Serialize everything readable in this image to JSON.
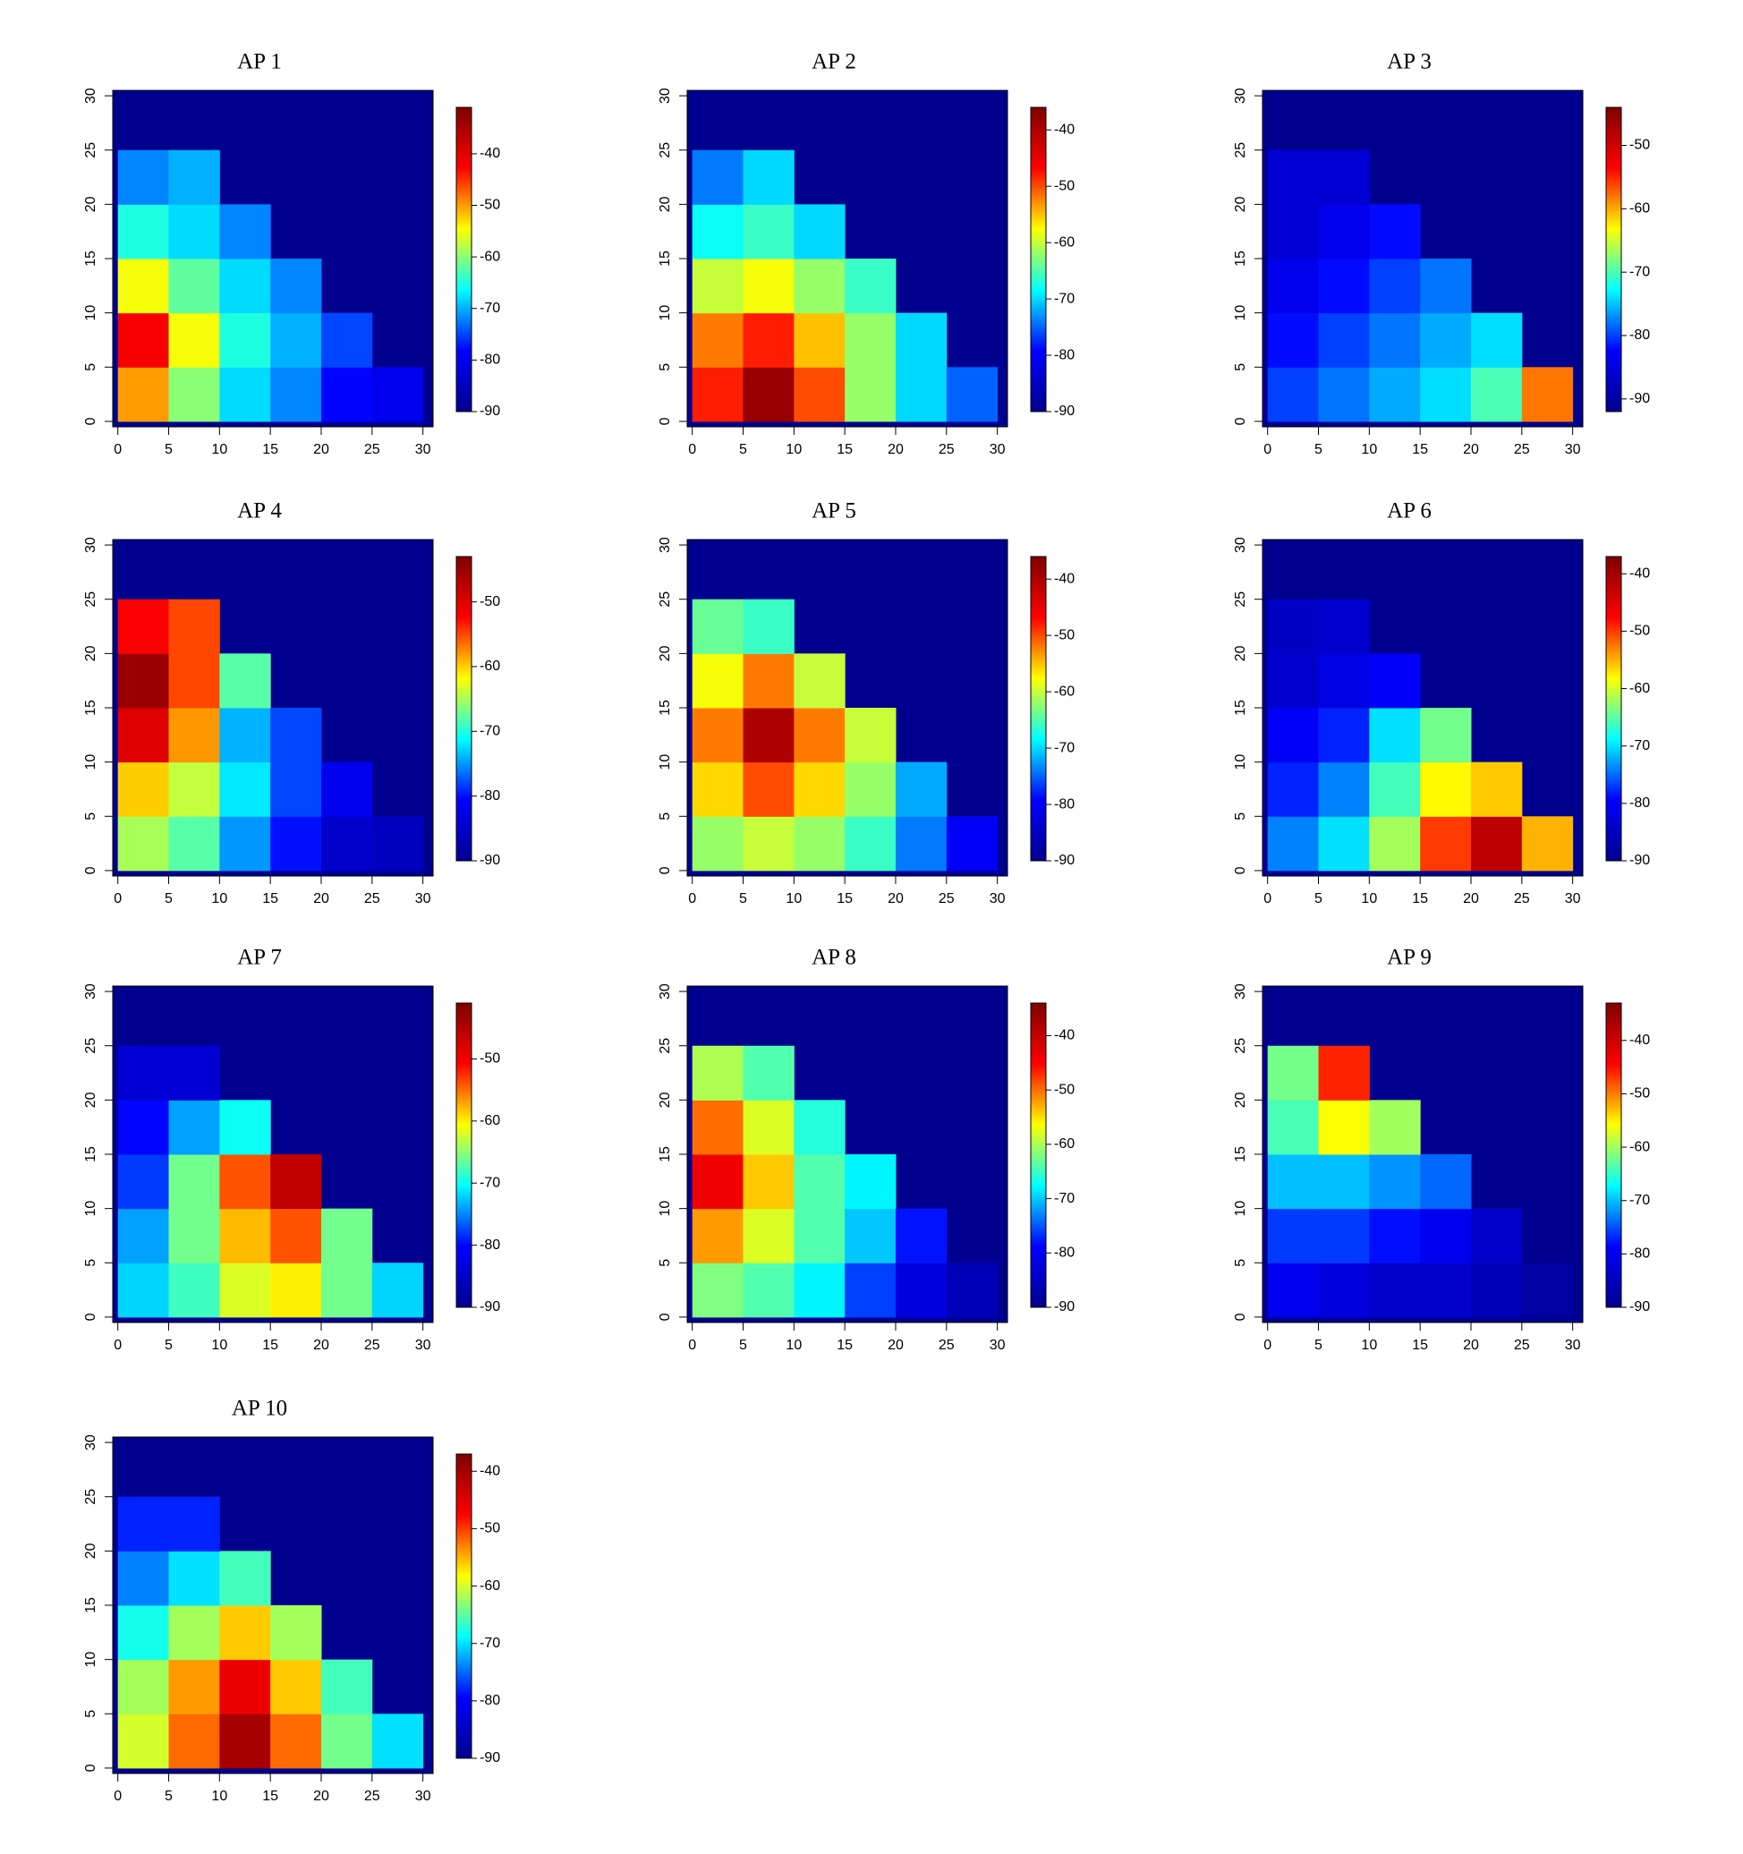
{
  "chart_data": [
    {
      "type": "heatmap",
      "title": "AP 1",
      "x_edges": [
        0,
        5,
        10,
        15,
        20,
        25,
        30
      ],
      "y_edges": [
        0,
        5,
        10,
        15,
        20,
        25,
        30
      ],
      "values": [
        [
          -50,
          -60,
          -68,
          -72,
          -78,
          -80
        ],
        [
          -42,
          -55,
          -65,
          -70,
          -75,
          null
        ],
        [
          -55,
          -62,
          -68,
          -72,
          null,
          null
        ],
        [
          -65,
          -68,
          -72,
          null,
          null,
          null
        ],
        [
          -72,
          -70,
          null,
          null,
          null,
          null
        ],
        [
          null,
          null,
          null,
          null,
          null,
          null
        ]
      ],
      "xlim": [
        -0.5,
        31
      ],
      "ylim": [
        -0.5,
        30.5
      ],
      "xticks": [
        0,
        5,
        10,
        15,
        20,
        25,
        30
      ],
      "yticks": [
        0,
        5,
        10,
        15,
        20,
        25,
        30
      ],
      "zlim": [
        -90,
        -31
      ],
      "zticks": [
        -40,
        -50,
        -60,
        -70,
        -80,
        -90
      ],
      "background_color": "#00008f",
      "colormap": [
        "#00008f",
        "#0000ff",
        "#00ffff",
        "#ffff00",
        "#ff0000",
        "#800000"
      ]
    },
    {
      "type": "heatmap",
      "title": "AP 2",
      "x_edges": [
        0,
        5,
        10,
        15,
        20,
        25,
        30
      ],
      "y_edges": [
        0,
        5,
        10,
        15,
        20,
        25,
        30
      ],
      "values": [
        [
          -48,
          -38,
          -50,
          -62,
          -70,
          -75
        ],
        [
          -52,
          -48,
          -55,
          -62,
          -70,
          null
        ],
        [
          -60,
          -58,
          -62,
          -66,
          null,
          null
        ],
        [
          -68,
          -66,
          -70,
          null,
          null,
          null
        ],
        [
          -74,
          -70,
          null,
          null,
          null,
          null
        ],
        [
          null,
          null,
          null,
          null,
          null,
          null
        ]
      ],
      "xlim": [
        -0.5,
        31
      ],
      "ylim": [
        -0.5,
        30.5
      ],
      "xticks": [
        0,
        5,
        10,
        15,
        20,
        25,
        30
      ],
      "yticks": [
        0,
        5,
        10,
        15,
        20,
        25,
        30
      ],
      "zlim": [
        -90,
        -36
      ],
      "zticks": [
        -40,
        -50,
        -60,
        -70,
        -80,
        -90
      ],
      "background_color": "#00008f",
      "colormap": [
        "#00008f",
        "#0000ff",
        "#00ffff",
        "#ffff00",
        "#ff0000",
        "#800000"
      ]
    },
    {
      "type": "heatmap",
      "title": "AP 3",
      "x_edges": [
        0,
        5,
        10,
        15,
        20,
        25,
        30
      ],
      "y_edges": [
        0,
        5,
        10,
        15,
        20,
        25,
        30
      ],
      "values": [
        [
          -80,
          -78,
          -76,
          -74,
          -70,
          -58
        ],
        [
          -82,
          -80,
          -78,
          -76,
          -74,
          null
        ],
        [
          -84,
          -82,
          -80,
          -78,
          null,
          null
        ],
        [
          -86,
          -84,
          -82,
          null,
          null,
          null
        ],
        [
          -86,
          -86,
          null,
          null,
          null,
          null
        ],
        [
          null,
          null,
          null,
          null,
          null,
          null
        ]
      ],
      "xlim": [
        -0.5,
        31
      ],
      "ylim": [
        -0.5,
        30.5
      ],
      "xticks": [
        0,
        5,
        10,
        15,
        20,
        25,
        30
      ],
      "yticks": [
        0,
        5,
        10,
        15,
        20,
        25,
        30
      ],
      "zlim": [
        -92,
        -44
      ],
      "zticks": [
        -50,
        -60,
        -70,
        -80,
        -90
      ],
      "background_color": "#00008f",
      "colormap": [
        "#00008f",
        "#0000ff",
        "#00ffff",
        "#ffff00",
        "#ff0000",
        "#800000"
      ]
    },
    {
      "type": "heatmap",
      "title": "AP 4",
      "x_edges": [
        0,
        5,
        10,
        15,
        20,
        25,
        30
      ],
      "y_edges": [
        0,
        5,
        10,
        15,
        20,
        25,
        30
      ],
      "values": [
        [
          -65,
          -68,
          -75,
          -80,
          -85,
          -86
        ],
        [
          -60,
          -64,
          -72,
          -78,
          -82,
          null
        ],
        [
          -50,
          -58,
          -74,
          -78,
          null,
          null
        ],
        [
          -45,
          -55,
          -68,
          null,
          null,
          null
        ],
        [
          -52,
          -55,
          null,
          null,
          null,
          null
        ],
        [
          null,
          null,
          null,
          null,
          null,
          null
        ]
      ],
      "xlim": [
        -0.5,
        31
      ],
      "ylim": [
        -0.5,
        30.5
      ],
      "xticks": [
        0,
        5,
        10,
        15,
        20,
        25,
        30
      ],
      "yticks": [
        0,
        5,
        10,
        15,
        20,
        25,
        30
      ],
      "zlim": [
        -90,
        -43
      ],
      "zticks": [
        -50,
        -60,
        -70,
        -80,
        -90
      ],
      "background_color": "#00008f",
      "colormap": [
        "#00008f",
        "#0000ff",
        "#00ffff",
        "#ffff00",
        "#ff0000",
        "#800000"
      ]
    },
    {
      "type": "heatmap",
      "title": "AP 5",
      "x_edges": [
        0,
        5,
        10,
        15,
        20,
        25,
        30
      ],
      "y_edges": [
        0,
        5,
        10,
        15,
        20,
        25,
        30
      ],
      "values": [
        [
          -62,
          -60,
          -62,
          -66,
          -74,
          -80
        ],
        [
          -56,
          -50,
          -56,
          -62,
          -72,
          null
        ],
        [
          -52,
          -40,
          -52,
          -60,
          null,
          null
        ],
        [
          -58,
          -52,
          -60,
          null,
          null,
          null
        ],
        [
          -64,
          -66,
          null,
          null,
          null,
          null
        ],
        [
          null,
          null,
          null,
          null,
          null,
          null
        ]
      ],
      "xlim": [
        -0.5,
        31
      ],
      "ylim": [
        -0.5,
        30.5
      ],
      "xticks": [
        0,
        5,
        10,
        15,
        20,
        25,
        30
      ],
      "yticks": [
        0,
        5,
        10,
        15,
        20,
        25,
        30
      ],
      "zlim": [
        -90,
        -36
      ],
      "zticks": [
        -40,
        -50,
        -60,
        -70,
        -80,
        -90
      ],
      "background_color": "#00008f",
      "colormap": [
        "#00008f",
        "#0000ff",
        "#00ffff",
        "#ffff00",
        "#ff0000",
        "#800000"
      ]
    },
    {
      "type": "heatmap",
      "title": "AP 6",
      "x_edges": [
        0,
        5,
        10,
        15,
        20,
        25,
        30
      ],
      "y_edges": [
        0,
        5,
        10,
        15,
        20,
        25,
        30
      ],
      "values": [
        [
          -74,
          -70,
          -62,
          -50,
          -42,
          -55
        ],
        [
          -78,
          -74,
          -66,
          -58,
          -56,
          null
        ],
        [
          -80,
          -78,
          -70,
          -64,
          null,
          null
        ],
        [
          -84,
          -82,
          -80,
          null,
          null,
          null
        ],
        [
          -85,
          -84,
          null,
          null,
          null,
          null
        ],
        [
          null,
          null,
          null,
          null,
          null,
          null
        ]
      ],
      "xlim": [
        -0.5,
        31
      ],
      "ylim": [
        -0.5,
        30.5
      ],
      "xticks": [
        0,
        5,
        10,
        15,
        20,
        25,
        30
      ],
      "yticks": [
        0,
        5,
        10,
        15,
        20,
        25,
        30
      ],
      "zlim": [
        -90,
        -37
      ],
      "zticks": [
        -40,
        -50,
        -60,
        -70,
        -80,
        -90
      ],
      "background_color": "#00008f",
      "colormap": [
        "#00008f",
        "#0000ff",
        "#00ffff",
        "#ffff00",
        "#ff0000",
        "#800000"
      ]
    },
    {
      "type": "heatmap",
      "title": "AP 7",
      "x_edges": [
        0,
        5,
        10,
        15,
        20,
        25,
        30
      ],
      "y_edges": [
        0,
        5,
        10,
        15,
        20,
        25,
        30
      ],
      "values": [
        [
          -72,
          -68,
          -62,
          -60,
          -66,
          -72
        ],
        [
          -74,
          -66,
          -58,
          -54,
          -66,
          null
        ],
        [
          -78,
          -66,
          -54,
          -46,
          null,
          null
        ],
        [
          -80,
          -74,
          -70,
          null,
          null,
          null
        ],
        [
          -84,
          -84,
          null,
          null,
          null,
          null
        ],
        [
          null,
          null,
          null,
          null,
          null,
          null
        ]
      ],
      "xlim": [
        -0.5,
        31
      ],
      "ylim": [
        -0.5,
        30.5
      ],
      "xticks": [
        0,
        5,
        10,
        15,
        20,
        25,
        30
      ],
      "yticks": [
        0,
        5,
        10,
        15,
        20,
        25,
        30
      ],
      "zlim": [
        -90,
        -41
      ],
      "zticks": [
        -50,
        -60,
        -70,
        -80,
        -90
      ],
      "background_color": "#00008f",
      "colormap": [
        "#00008f",
        "#0000ff",
        "#00ffff",
        "#ffff00",
        "#ff0000",
        "#800000"
      ]
    },
    {
      "type": "heatmap",
      "title": "AP 8",
      "x_edges": [
        0,
        5,
        10,
        15,
        20,
        25,
        30
      ],
      "y_edges": [
        0,
        5,
        10,
        15,
        20,
        25,
        30
      ],
      "values": [
        [
          -62,
          -64,
          -68,
          -76,
          -82,
          -86
        ],
        [
          -52,
          -58,
          -64,
          -70,
          -78,
          null
        ],
        [
          -44,
          -54,
          -64,
          -68,
          null,
          null
        ],
        [
          -50,
          -58,
          -66,
          null,
          null,
          null
        ],
        [
          -60,
          -64,
          null,
          null,
          null,
          null
        ],
        [
          null,
          null,
          null,
          null,
          null,
          null
        ]
      ],
      "xlim": [
        -0.5,
        31
      ],
      "ylim": [
        -0.5,
        30.5
      ],
      "xticks": [
        0,
        5,
        10,
        15,
        20,
        25,
        30
      ],
      "yticks": [
        0,
        5,
        10,
        15,
        20,
        25,
        30
      ],
      "zlim": [
        -90,
        -34
      ],
      "zticks": [
        -40,
        -50,
        -60,
        -70,
        -80,
        -90
      ],
      "background_color": "#00008f",
      "colormap": [
        "#00008f",
        "#0000ff",
        "#00ffff",
        "#ffff00",
        "#ff0000",
        "#800000"
      ]
    },
    {
      "type": "heatmap",
      "title": "AP 9",
      "x_edges": [
        0,
        5,
        10,
        15,
        20,
        25,
        30
      ],
      "y_edges": [
        0,
        5,
        10,
        15,
        20,
        25,
        30
      ],
      "values": [
        [
          -80,
          -82,
          -84,
          -84,
          -86,
          -88
        ],
        [
          -76,
          -76,
          -78,
          -80,
          -84,
          null
        ],
        [
          -70,
          -70,
          -72,
          -74,
          null,
          null
        ],
        [
          -64,
          -56,
          -60,
          null,
          null,
          null
        ],
        [
          -62,
          -46,
          null,
          null,
          null,
          null
        ],
        [
          null,
          null,
          null,
          null,
          null,
          null
        ]
      ],
      "xlim": [
        -0.5,
        31
      ],
      "ylim": [
        -0.5,
        30.5
      ],
      "xticks": [
        0,
        5,
        10,
        15,
        20,
        25,
        30
      ],
      "yticks": [
        0,
        5,
        10,
        15,
        20,
        25,
        30
      ],
      "zlim": [
        -90,
        -33
      ],
      "zticks": [
        -40,
        -50,
        -60,
        -70,
        -80,
        -90
      ],
      "background_color": "#00008f",
      "colormap": [
        "#00008f",
        "#0000ff",
        "#00ffff",
        "#ffff00",
        "#ff0000",
        "#800000"
      ]
    },
    {
      "type": "heatmap",
      "title": "AP 10",
      "x_edges": [
        0,
        5,
        10,
        15,
        20,
        25,
        30
      ],
      "y_edges": [
        0,
        5,
        10,
        15,
        20,
        25,
        30
      ],
      "values": [
        [
          -60,
          -52,
          -40,
          -52,
          -64,
          -70
        ],
        [
          -62,
          -54,
          -46,
          -56,
          -66,
          null
        ],
        [
          -68,
          -62,
          -56,
          -62,
          null,
          null
        ],
        [
          -74,
          -70,
          -66,
          null,
          null,
          null
        ],
        [
          -78,
          -78,
          null,
          null,
          null,
          null
        ],
        [
          null,
          null,
          null,
          null,
          null,
          null
        ]
      ],
      "xlim": [
        -0.5,
        31
      ],
      "ylim": [
        -0.5,
        30.5
      ],
      "xticks": [
        0,
        5,
        10,
        15,
        20,
        25,
        30
      ],
      "yticks": [
        0,
        5,
        10,
        15,
        20,
        25,
        30
      ],
      "zlim": [
        -90,
        -37
      ],
      "zticks": [
        -40,
        -50,
        -60,
        -70,
        -80,
        -90
      ],
      "background_color": "#00008f",
      "colormap": [
        "#00008f",
        "#0000ff",
        "#00ffff",
        "#ffff00",
        "#ff0000",
        "#800000"
      ]
    }
  ]
}
